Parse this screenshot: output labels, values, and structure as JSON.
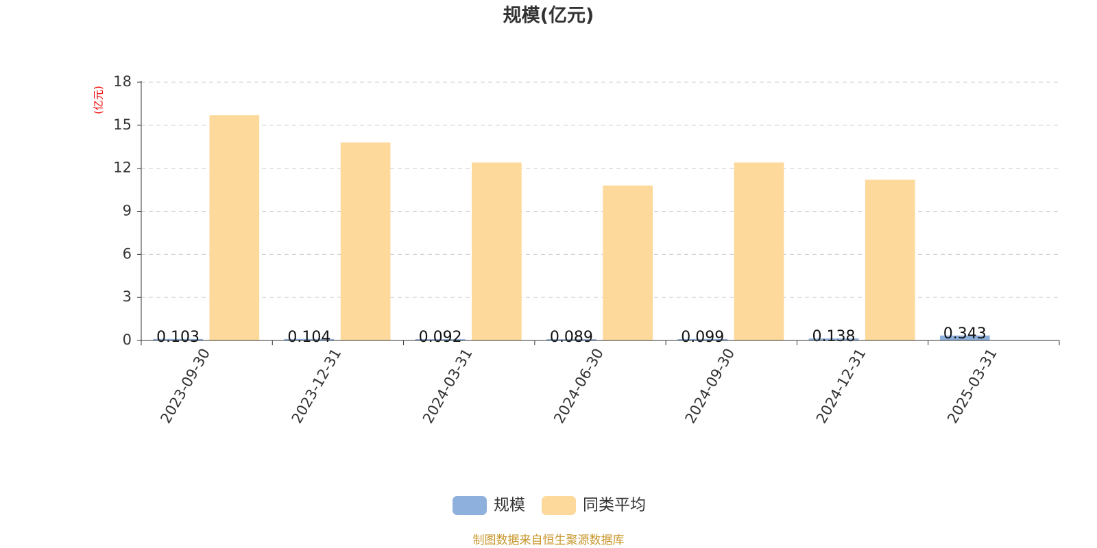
{
  "chart_data": {
    "type": "bar",
    "title": "规模(亿元)",
    "y_label": "(亿元)",
    "categories": [
      "2023-09-30",
      "2023-12-31",
      "2024-03-31",
      "2024-06-30",
      "2024-09-30",
      "2024-12-31",
      "2025-03-31"
    ],
    "series": [
      {
        "name": "规模",
        "color": "#8eb0dc",
        "values": [
          0.103,
          0.104,
          0.092,
          0.089,
          0.099,
          0.138,
          0.343
        ]
      },
      {
        "name": "同类平均",
        "color": "#fdd99b",
        "values": [
          15.7,
          13.8,
          12.4,
          10.8,
          12.4,
          11.2,
          null
        ]
      }
    ],
    "value_labels_series": 0,
    "ylim": [
      0,
      18
    ],
    "yticks": [
      0,
      3,
      6,
      9,
      12,
      15,
      18
    ],
    "grid": true,
    "source": "制图数据来自恒生聚源数据库"
  }
}
